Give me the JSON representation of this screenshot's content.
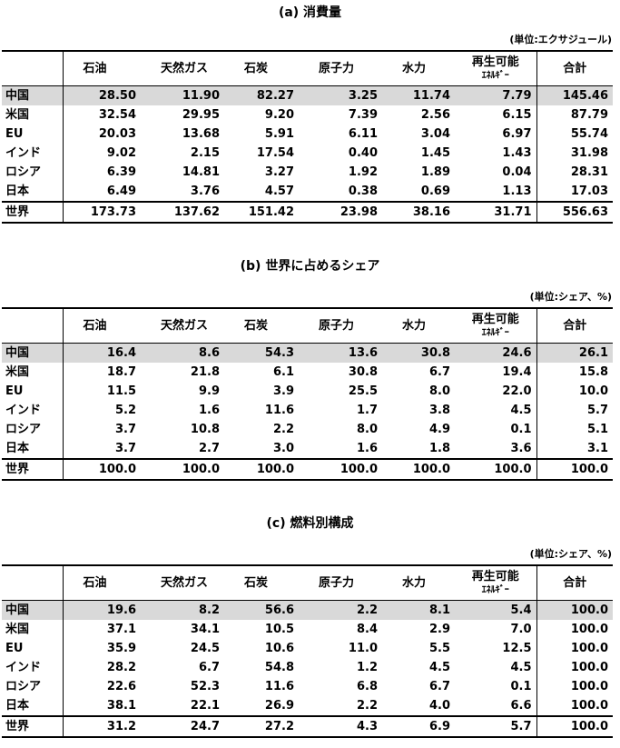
{
  "columns": [
    "石油",
    "天然ガス",
    "石炭",
    "原子力",
    "水力",
    "再生可能",
    "ｴﾈﾙｷﾞｰ",
    "合計"
  ],
  "row_labels": [
    "中国",
    "米国",
    "EU",
    "インド",
    "ロシア",
    "日本",
    "世界"
  ],
  "tables": [
    {
      "title": "(a) 消費量",
      "unit": "(単位:エクサジュール)",
      "rows": [
        [
          "28.50",
          "11.90",
          "82.27",
          "3.25",
          "11.74",
          "7.79",
          "145.46"
        ],
        [
          "32.54",
          "29.95",
          "9.20",
          "7.39",
          "2.56",
          "6.15",
          "87.79"
        ],
        [
          "20.03",
          "13.68",
          "5.91",
          "6.11",
          "3.04",
          "6.97",
          "55.74"
        ],
        [
          "9.02",
          "2.15",
          "17.54",
          "0.40",
          "1.45",
          "1.43",
          "31.98"
        ],
        [
          "6.39",
          "14.81",
          "3.27",
          "1.92",
          "1.89",
          "0.04",
          "28.31"
        ],
        [
          "6.49",
          "3.76",
          "4.57",
          "0.38",
          "0.69",
          "1.13",
          "17.03"
        ],
        [
          "173.73",
          "137.62",
          "151.42",
          "23.98",
          "38.16",
          "31.71",
          "556.63"
        ]
      ]
    },
    {
      "title": "(b) 世界に占めるシェア",
      "unit": "(単位:シェア、%)",
      "rows": [
        [
          "16.4",
          "8.6",
          "54.3",
          "13.6",
          "30.8",
          "24.6",
          "26.1"
        ],
        [
          "18.7",
          "21.8",
          "6.1",
          "30.8",
          "6.7",
          "19.4",
          "15.8"
        ],
        [
          "11.5",
          "9.9",
          "3.9",
          "25.5",
          "8.0",
          "22.0",
          "10.0"
        ],
        [
          "5.2",
          "1.6",
          "11.6",
          "1.7",
          "3.8",
          "4.5",
          "5.7"
        ],
        [
          "3.7",
          "10.8",
          "2.2",
          "8.0",
          "4.9",
          "0.1",
          "5.1"
        ],
        [
          "3.7",
          "2.7",
          "3.0",
          "1.6",
          "1.8",
          "3.6",
          "3.1"
        ],
        [
          "100.0",
          "100.0",
          "100.0",
          "100.0",
          "100.0",
          "100.0",
          "100.0"
        ]
      ]
    },
    {
      "title": "(c) 燃料別構成",
      "unit": "(単位:シェア、%)",
      "rows": [
        [
          "19.6",
          "8.2",
          "56.6",
          "2.2",
          "8.1",
          "5.4",
          "100.0"
        ],
        [
          "37.1",
          "34.1",
          "10.5",
          "8.4",
          "2.9",
          "7.0",
          "100.0"
        ],
        [
          "35.9",
          "24.5",
          "10.6",
          "11.0",
          "5.5",
          "12.5",
          "100.0"
        ],
        [
          "28.2",
          "6.7",
          "54.8",
          "1.2",
          "4.5",
          "4.5",
          "100.0"
        ],
        [
          "22.6",
          "52.3",
          "11.6",
          "6.8",
          "6.7",
          "0.1",
          "100.0"
        ],
        [
          "38.1",
          "22.1",
          "26.9",
          "2.2",
          "4.0",
          "6.6",
          "100.0"
        ],
        [
          "31.2",
          "24.7",
          "27.2",
          "4.3",
          "6.9",
          "5.7",
          "100.0"
        ]
      ]
    }
  ]
}
